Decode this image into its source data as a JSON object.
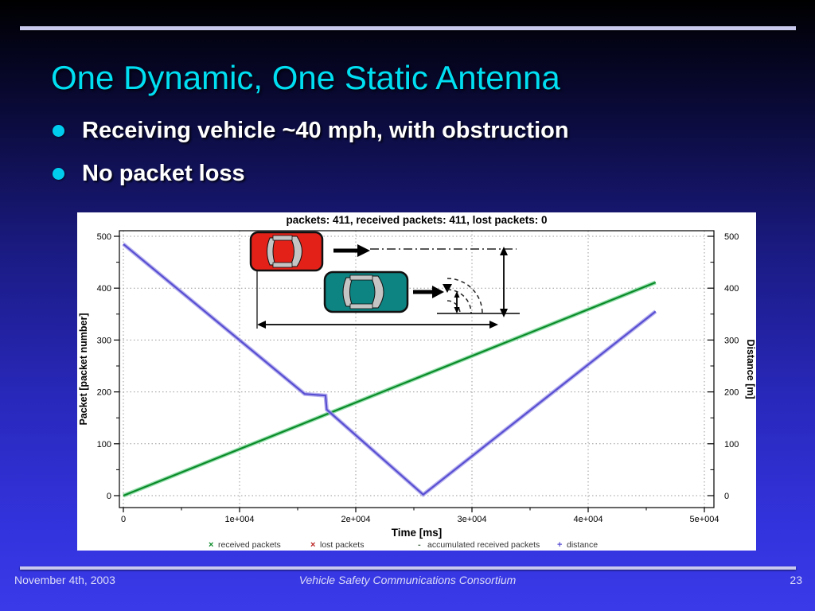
{
  "slide": {
    "title": "One Dynamic, One Static Antenna",
    "bullets": [
      "Receiving vehicle ~40 mph, with obstruction",
      "No packet loss"
    ],
    "footer": {
      "date": "November 4th, 2003",
      "center": "Vehicle Safety Communications Consortium",
      "page": "23"
    },
    "colors": {
      "title_text": "#00dff2",
      "bullet_dot": "#00cdee",
      "rule": "#c9c9ef",
      "background_bottom": "#3a3ae9"
    },
    "inset_icons": [
      "red-car-icon",
      "teal-car-icon",
      "antenna-waves-icon",
      "distance-measure-arrows"
    ]
  },
  "chart_data": {
    "type": "line",
    "title": "packets: 411, received packets: 411, lost packets: 0",
    "xlabel": "Time [ms]",
    "ylabel_left": "Packet [packet number]",
    "ylabel_right": "Distance [m]",
    "xlim": [
      0,
      51000
    ],
    "ylim": [
      0,
      500
    ],
    "x_ticks": [
      0,
      10000,
      20000,
      30000,
      40000,
      50000
    ],
    "x_tick_labels": [
      "0",
      "1e+004",
      "2e+004",
      "3e+004",
      "4e+004",
      "5e+004"
    ],
    "y_ticks": [
      0,
      100,
      200,
      300,
      400,
      500
    ],
    "grid": true,
    "legend_position": "below-axis",
    "series": [
      {
        "name": "accumulated received packets",
        "color": "#0a8a28",
        "halo": "#74d493",
        "points": [
          [
            0,
            0
          ],
          [
            45800,
            411
          ]
        ]
      },
      {
        "name": "distance",
        "color": "#584ed2",
        "halo": "#a39cea",
        "points": [
          [
            0,
            485
          ],
          [
            15600,
            196
          ],
          [
            17400,
            193
          ],
          [
            17500,
            166
          ],
          [
            25800,
            2
          ],
          [
            45800,
            355
          ]
        ]
      }
    ],
    "legend": [
      {
        "marker": "×",
        "color": "#0a8a28",
        "label": "received packets"
      },
      {
        "marker": "×",
        "color": "#bb2222",
        "label": "lost packets"
      },
      {
        "marker": "-",
        "color": "#557755",
        "label": "accumulated received packets"
      },
      {
        "marker": "+",
        "color": "#584ed2",
        "label": "distance"
      }
    ]
  }
}
